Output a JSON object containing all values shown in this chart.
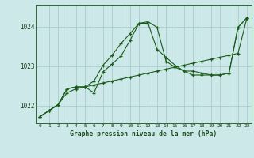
{
  "title": "Graphe pression niveau de la mer (hPa)",
  "bg_color": "#cce8e8",
  "grid_color": "#aacccc",
  "line_color": "#1a5c1a",
  "xlim": [
    -0.5,
    23.5
  ],
  "ylim": [
    1021.55,
    1024.55
  ],
  "yticks": [
    1022,
    1023,
    1024
  ],
  "xlabel_color": "#1a4a1a",
  "series1_x": [
    0,
    1,
    2,
    3,
    4,
    5,
    6,
    7,
    8,
    9,
    10,
    11,
    12,
    13,
    14,
    15,
    16,
    17,
    18,
    19,
    20,
    21,
    22,
    23
  ],
  "series1_y": [
    1021.72,
    1021.87,
    1022.02,
    1022.42,
    1022.47,
    1022.47,
    1022.32,
    1022.85,
    1023.05,
    1023.25,
    1023.65,
    1024.08,
    1024.12,
    1023.98,
    1023.12,
    1022.97,
    1022.87,
    1022.87,
    1022.82,
    1022.77,
    1022.77,
    1022.82,
    1023.98,
    1024.22
  ],
  "series2_x": [
    0,
    1,
    2,
    3,
    4,
    5,
    6,
    7,
    8,
    9,
    10,
    11,
    12,
    13,
    14,
    15,
    16,
    17,
    18,
    19,
    20,
    21,
    22,
    23
  ],
  "series2_y": [
    1021.72,
    1021.87,
    1022.02,
    1022.42,
    1022.47,
    1022.47,
    1022.62,
    1023.02,
    1023.27,
    1023.57,
    1023.82,
    1024.08,
    1024.08,
    1023.42,
    1023.22,
    1023.02,
    1022.87,
    1022.77,
    1022.77,
    1022.77,
    1022.77,
    1022.82,
    1023.98,
    1024.22
  ],
  "series3_x": [
    0,
    1,
    2,
    3,
    4,
    5,
    6,
    7,
    8,
    9,
    10,
    11,
    12,
    13,
    14,
    15,
    16,
    17,
    18,
    19,
    20,
    21,
    22,
    23
  ],
  "series3_y": [
    1021.72,
    1021.87,
    1022.02,
    1022.32,
    1022.42,
    1022.47,
    1022.52,
    1022.57,
    1022.62,
    1022.67,
    1022.72,
    1022.77,
    1022.82,
    1022.87,
    1022.92,
    1022.97,
    1023.02,
    1023.07,
    1023.12,
    1023.17,
    1023.22,
    1023.27,
    1023.32,
    1024.22
  ]
}
